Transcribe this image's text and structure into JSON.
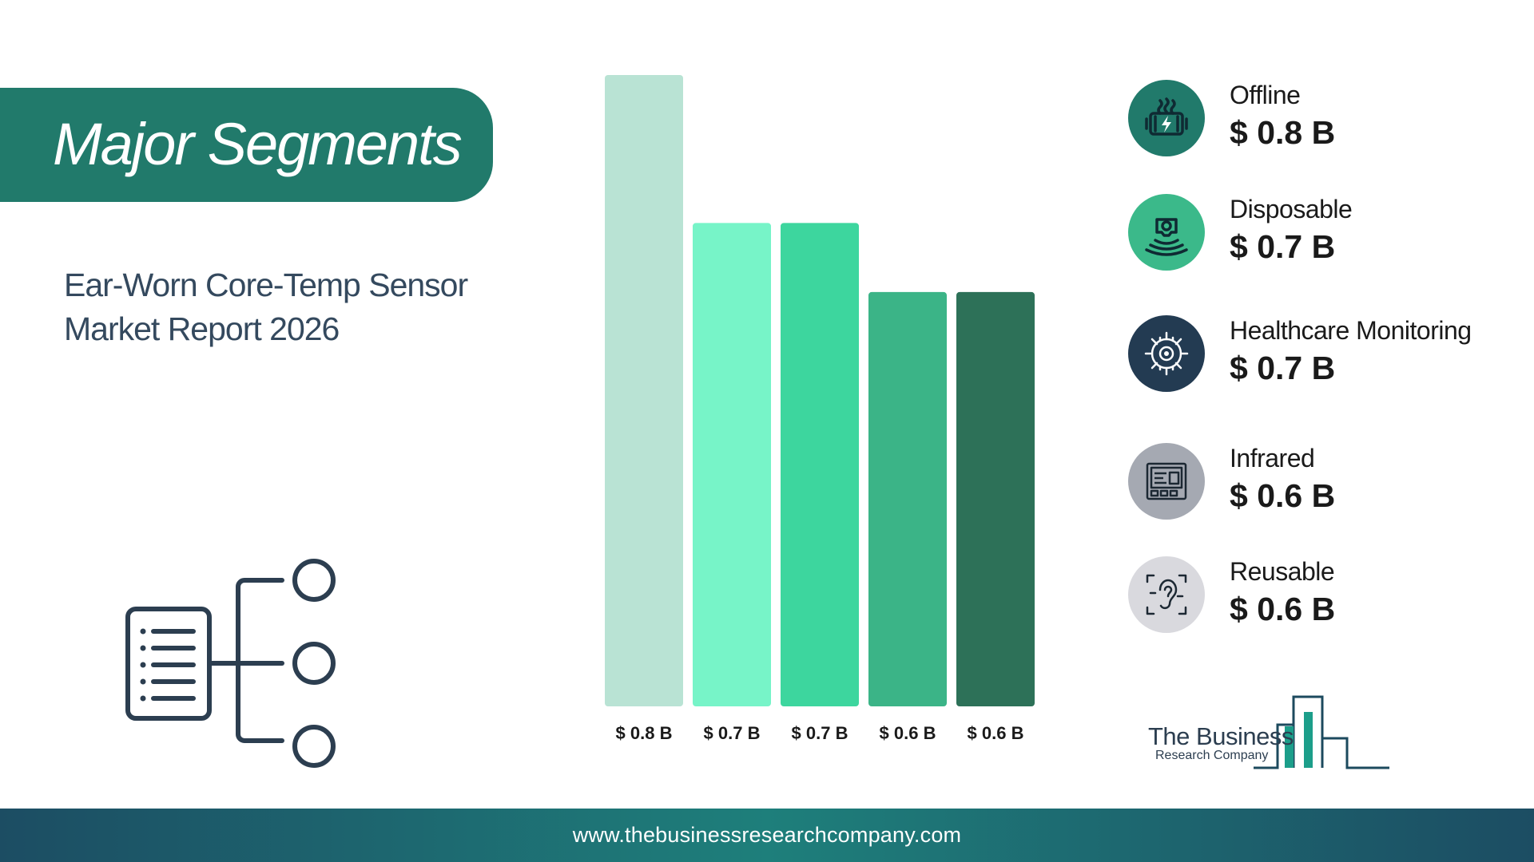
{
  "header": {
    "title": "Major Segments"
  },
  "report": {
    "line1": "Ear-Worn Core-Temp Sensor",
    "line2": "Market Report 2026"
  },
  "chart_data": {
    "type": "bar",
    "categories": [
      "Offline",
      "Disposable",
      "Healthcare Monitoring",
      "Infrared",
      "Reusable"
    ],
    "values": [
      0.8,
      0.7,
      0.7,
      0.6,
      0.6
    ],
    "value_labels": [
      "$ 0.8 B",
      "$ 0.7 B",
      "$ 0.7 B",
      "$ 0.6 B",
      "$ 0.6 B"
    ],
    "bar_colors": [
      "#b9e3d4",
      "#77f4c8",
      "#3dd69e",
      "#3bb487",
      "#2d7158"
    ],
    "title": "",
    "xlabel": "",
    "ylabel": "",
    "ylim": [
      0,
      0.8
    ],
    "grid": false,
    "legend": "right"
  },
  "legend": {
    "items": [
      {
        "name": "Offline",
        "value": "$ 0.8 B",
        "icon": "battery-charging-icon",
        "circle_color": "#217a6b"
      },
      {
        "name": "Disposable",
        "value": "$ 0.7 B",
        "icon": "wireless-sensor-icon",
        "circle_color": "#3bb98a"
      },
      {
        "name": "Healthcare Monitoring",
        "value": "$ 0.7 B",
        "icon": "circuit-chip-icon",
        "circle_color": "#233b52"
      },
      {
        "name": "Infrared",
        "value": "$ 0.6 B",
        "icon": "control-panel-icon",
        "circle_color": "#a5a9b2"
      },
      {
        "name": "Reusable",
        "value": "$ 0.6 B",
        "icon": "ear-sensor-icon",
        "circle_color": "#d9d9de"
      }
    ]
  },
  "brand": {
    "line1": "The Business",
    "line2": "Research Company"
  },
  "footer": {
    "url": "www.thebusinessresearchcompany.com"
  }
}
